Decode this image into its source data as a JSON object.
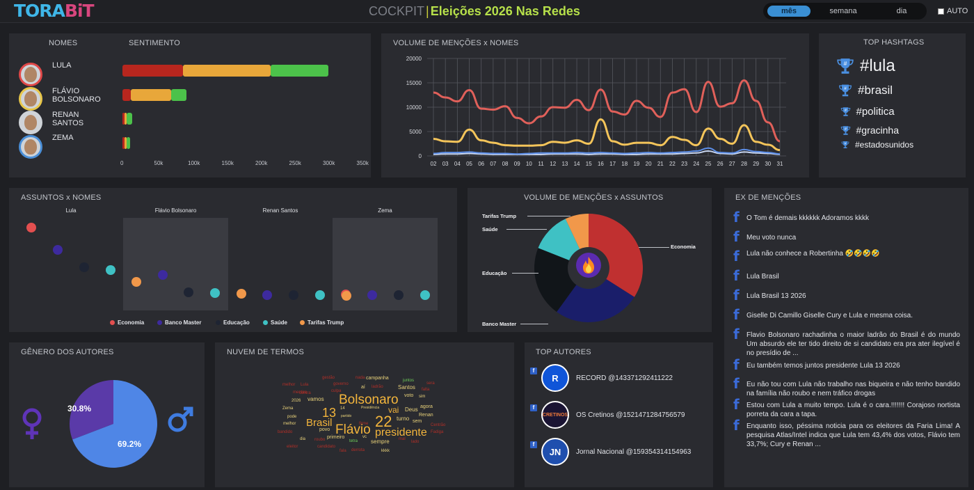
{
  "header": {
    "logo_part1": "TORA",
    "logo_part2": "BiT",
    "title_prefix": "COCKPIT",
    "title_sep": "|",
    "title_main": "Eleições 2026 Nas Redes",
    "period_options": [
      "mês",
      "semana",
      "dia"
    ],
    "period_selected": "mês",
    "auto_label": "AUTO",
    "auto_checked": false
  },
  "sentimento": {
    "col_names": "NOMES",
    "col_sent": "SENTIMENTO",
    "x_ticks": [
      "0",
      "50k",
      "100k",
      "150k",
      "200k",
      "250k",
      "300k",
      "350k"
    ],
    "x_max": 350000,
    "colors": {
      "negativo": "#b8261e",
      "neutro": "#e8a73a",
      "positivo": "#4cc24a"
    },
    "people": [
      {
        "name_line1": "LULA",
        "name_line2": "",
        "ring": "#e04848",
        "negativo": 90000,
        "neutro": 130000,
        "positivo": 85000
      },
      {
        "name_line1": "FLÁVIO",
        "name_line2": "BOLSONARO",
        "ring": "#e8c74a",
        "negativo": 12000,
        "neutro": 60000,
        "positivo": 23000
      },
      {
        "name_line1": "RENAN",
        "name_line2": "SANTOS",
        "ring": "#cfd3d8",
        "negativo": 2000,
        "neutro": 1500,
        "positivo": 8000
      },
      {
        "name_line1": "ZEMA",
        "name_line2": "",
        "ring": "#4a8fd8",
        "negativo": 2500,
        "neutro": 2500,
        "positivo": 5000
      }
    ]
  },
  "volume_nomes": {
    "title": "VOLUME DE MENÇÕES x NOMES",
    "chart_data": {
      "type": "line",
      "x": [
        "02",
        "03",
        "04",
        "05",
        "06",
        "07",
        "08",
        "09",
        "10",
        "11",
        "12",
        "13",
        "14",
        "15",
        "16",
        "17",
        "18",
        "19",
        "20",
        "21",
        "22",
        "23",
        "24",
        "25",
        "26",
        "27",
        "28",
        "29",
        "30",
        "31"
      ],
      "ylim": [
        0,
        20000
      ],
      "yticks": [
        "0",
        "5000",
        "10000",
        "15000",
        "20000"
      ],
      "series": [
        {
          "color": "#e0605a",
          "values": [
            13000,
            12000,
            11200,
            13500,
            9700,
            9500,
            10200,
            7800,
            6700,
            8100,
            10000,
            9900,
            11500,
            9400,
            13600,
            9100,
            8500,
            11300,
            9900,
            8000,
            13000,
            13700,
            9000,
            15200,
            10100,
            10800,
            15500,
            11300,
            6900,
            3000
          ]
        },
        {
          "color": "#f3c45a",
          "values": [
            3500,
            3000,
            2900,
            5400,
            3200,
            2700,
            2200,
            2100,
            2100,
            2200,
            2900,
            2700,
            3200,
            2500,
            7500,
            3000,
            2300,
            2700,
            2700,
            2200,
            3900,
            3300,
            2200,
            5600,
            3500,
            2500,
            6300,
            2900,
            2300,
            1200
          ]
        },
        {
          "color": "#5c8ee8",
          "values": [
            500,
            700,
            700,
            800,
            600,
            500,
            500,
            400,
            500,
            600,
            600,
            600,
            700,
            600,
            700,
            600,
            500,
            600,
            700,
            600,
            700,
            800,
            1000,
            1600,
            700,
            600,
            1300,
            900,
            700,
            400
          ]
        },
        {
          "color": "#c9d7f2",
          "values": [
            300,
            400,
            400,
            500,
            400,
            300,
            300,
            300,
            300,
            300,
            400,
            400,
            400,
            300,
            400,
            400,
            300,
            300,
            400,
            400,
            400,
            500,
            600,
            1000,
            500,
            400,
            800,
            600,
            500,
            300
          ]
        }
      ]
    }
  },
  "hashtags": {
    "title": "TOP HASHTAGS",
    "items": [
      "#lula",
      "#brasil",
      "#politica",
      "#gracinha",
      "#estadosunidos"
    ]
  },
  "assuntos": {
    "title": "ASSUNTOS x NOMES",
    "columns": [
      "Lula",
      "Flávio Bolsonaro",
      "Renan Santos",
      "Zema"
    ],
    "legend": [
      {
        "label": "Economia",
        "color": "#e34f4f"
      },
      {
        "label": "Banco Master",
        "color": "#3d2a9e"
      },
      {
        "label": "Educação",
        "color": "#1e2433"
      },
      {
        "label": "Saúde",
        "color": "#3fc1c4"
      },
      {
        "label": "Tarifas Trump",
        "color": "#f1984a"
      }
    ]
  },
  "volume_assuntos": {
    "title": "VOLUME DE MENÇÕES x ASSUNTOS",
    "chart_data": {
      "type": "pie",
      "slices": [
        {
          "label": "Economia",
          "value": 34,
          "color": "#c03030"
        },
        {
          "label": "Banco Master",
          "value": 26,
          "color": "#1a1e6a"
        },
        {
          "label": "Educação",
          "value": 21,
          "color": "#111519"
        },
        {
          "label": "Saúde",
          "value": 12,
          "color": "#3fc1c4"
        },
        {
          "label": "Tarifas Trump",
          "value": 7,
          "color": "#f1984a"
        }
      ]
    }
  },
  "mencoes": {
    "title": "EX DE MENÇÕES",
    "items": [
      "O Tom é demais kkkkkk Adoramos kkkk",
      "Meu voto nunca",
      "Lula não conhece a Robertinha 🤣🤣🤣🤣",
      "Lula Brasil",
      "Lula Brasil 13 2026",
      "Giselle Di Camillo Giselle Cury e Lula e mesma coisa.",
      "Flavio Bolsonaro rachadinha o maior ladrão do Brasil é do mundo Um absurdo ele ter tido direito de si candidato era pra ater ilegível é no presídio de ...",
      "Eu também temos juntos presidente Lula 13 2026",
      "Eu não tou com Lula não trabalho nas biqueira e não tenho bandido na família não roubo e nem tráfico drogas",
      "Estou com Lula a muito tempo. Lula é o cara.!!!!!!! Corajoso nortista porreta da cara a tapa.",
      "Enquanto isso, péssima noticia para os eleitores da Faria Lima! A pesquisa Atlas/Intel indica que Lula tem 43,4% dos votos, Flávio tem 33,7%; Cury e Renan ..."
    ]
  },
  "genero": {
    "title": "GÊNERO DOS AUTORES",
    "chart_data": {
      "type": "pie",
      "slices": [
        {
          "label": "30.8%",
          "value": 30.8,
          "color": "#5a3aa8"
        },
        {
          "label": "69.2%",
          "value": 69.2,
          "color": "#4f86e6"
        }
      ]
    },
    "female_icon": "female-symbol-icon",
    "male_icon": "male-symbol-icon"
  },
  "nuvem": {
    "title": "NUVEM DE TERMOS",
    "words": [
      {
        "t": "Bolsonaro",
        "s": 19,
        "c": "#f3b53c"
      },
      {
        "t": "Flávio",
        "s": 19,
        "c": "#f3b53c"
      },
      {
        "t": "presidente",
        "s": 16,
        "c": "#f3b53c"
      },
      {
        "t": "22",
        "s": 22,
        "c": "#f3b53c"
      },
      {
        "t": "13",
        "s": 18,
        "c": "#f3b53c"
      },
      {
        "t": "Brasil",
        "s": 15,
        "c": "#f3b53c"
      },
      {
        "t": "vai",
        "s": 12,
        "c": "#f3b53c"
      },
      {
        "t": "campanha",
        "s": 7,
        "c": "#e9d27a"
      },
      {
        "t": "Santos",
        "s": 8,
        "c": "#e9d27a"
      },
      {
        "t": "vamos",
        "s": 8,
        "c": "#e9d27a"
      },
      {
        "t": "Deus",
        "s": 8,
        "c": "#e9d27a"
      },
      {
        "t": "turno",
        "s": 8,
        "c": "#e9d27a"
      },
      {
        "t": "agora",
        "s": 7,
        "c": "#e9d27a"
      },
      {
        "t": "Renan",
        "s": 7,
        "c": "#e9d27a"
      },
      {
        "t": "primeiro",
        "s": 7,
        "c": "#e9d27a"
      },
      {
        "t": "sempre",
        "s": 8,
        "c": "#e9d27a"
      },
      {
        "t": "povo",
        "s": 7,
        "c": "#e9d27a"
      },
      {
        "t": "voto",
        "s": 7,
        "c": "#e9d27a"
      },
      {
        "t": "sim",
        "s": 6,
        "c": "#e9d27a"
      },
      {
        "t": "sem",
        "s": 7,
        "c": "#e9d27a"
      },
      {
        "t": "Zema",
        "s": 6,
        "c": "#e9d27a"
      },
      {
        "t": "pode",
        "s": 6,
        "c": "#e9d27a"
      },
      {
        "t": "melhor",
        "s": 6,
        "c": "#e9d27a"
      },
      {
        "t": "dia",
        "s": 6,
        "c": "#e9d27a"
      },
      {
        "t": "2026",
        "s": 6,
        "c": "#e9d27a"
      },
      {
        "t": "aí",
        "s": 7,
        "c": "#e9d27a"
      },
      {
        "t": "14",
        "s": 6,
        "c": "#e9d27a"
      },
      {
        "t": "vc",
        "s": 6,
        "c": "#e9d27a"
      },
      {
        "t": "kkkk",
        "s": 6,
        "c": "#e9d27a"
      },
      {
        "t": "partido",
        "s": 5,
        "c": "#e9d27a"
      },
      {
        "t": "Presidência",
        "s": 5,
        "c": "#e9d27a"
      },
      {
        "t": "juntos",
        "s": 6,
        "c": "#6fcf5a"
      },
      {
        "t": "tetra",
        "s": 6,
        "c": "#6fcf5a"
      },
      {
        "t": "gestão",
        "s": 6,
        "c": "#b02f28"
      },
      {
        "t": "melhor",
        "s": 6,
        "c": "#b02f28"
      },
      {
        "t": "governo",
        "s": 6,
        "c": "#b02f28"
      },
      {
        "t": "Lula",
        "s": 6,
        "c": "#b02f28"
      },
      {
        "t": "nada",
        "s": 6,
        "c": "#b02f28"
      },
      {
        "t": "ladrão",
        "s": 6,
        "c": "#b02f28"
      },
      {
        "t": "mentira",
        "s": 6,
        "c": "#b02f28"
      },
      {
        "t": "contra",
        "s": 6,
        "c": "#b02f28"
      },
      {
        "t": "culpa",
        "s": 6,
        "c": "#b02f28"
      },
      {
        "t": "falta",
        "s": 6,
        "c": "#b02f28"
      },
      {
        "t": "roubo",
        "s": 6,
        "c": "#b02f28"
      },
      {
        "t": "bandido",
        "s": 6,
        "c": "#b02f28"
      },
      {
        "t": "Centrão",
        "s": 6,
        "c": "#b02f28"
      },
      {
        "t": "Fadiga",
        "s": 6,
        "c": "#b02f28"
      },
      {
        "t": "sera",
        "s": 6,
        "c": "#b02f28"
      },
      {
        "t": "eleitor",
        "s": 6,
        "c": "#b02f28"
      },
      {
        "t": "fala",
        "s": 6,
        "c": "#b02f28"
      },
      {
        "t": "derrota",
        "s": 6,
        "c": "#b02f28"
      },
      {
        "t": "mal",
        "s": 6,
        "c": "#b02f28"
      },
      {
        "t": "lado",
        "s": 6,
        "c": "#b02f28"
      },
      {
        "t": "candidato",
        "s": 6,
        "c": "#b02f28"
      },
      {
        "t": "firme",
        "s": 6,
        "c": "#b02f28"
      }
    ]
  },
  "autores": {
    "title": "TOP AUTORES",
    "items": [
      {
        "name": "RECORD @143371292411222",
        "logo_text": "R",
        "bg": "#0f55d8",
        "fg": "#ffffff"
      },
      {
        "name": "OS Cretinos @1521471284756579",
        "logo_text": "CRETINOS",
        "bg": "#1a1433",
        "fg": "#f07a3a"
      },
      {
        "name": "Jornal Nacional @159354314154963",
        "logo_text": "JN",
        "bg": "#1f4fae",
        "fg": "#ffffff"
      }
    ]
  }
}
